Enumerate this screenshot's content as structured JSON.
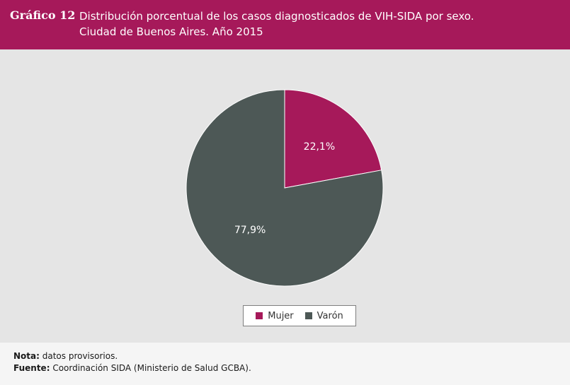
{
  "header": {
    "number": "Gráfico 12",
    "title_line1": "Distribución porcentual de los casos diagnosticados de VIH-SIDA por sexo.",
    "title_line2": "Ciudad de Buenos Aires. Año 2015"
  },
  "chart_data": {
    "type": "pie",
    "title": "Distribución porcentual de los casos diagnosticados de VIH-SIDA por sexo. Ciudad de Buenos Aires. Año 2015",
    "categories": [
      "Mujer",
      "Varón"
    ],
    "values": [
      22.1,
      77.9
    ],
    "labels": [
      "22,1%",
      "77,9%"
    ],
    "colors": [
      "#a6195a",
      "#4d5856"
    ],
    "legend": "bottom-center",
    "unit": "%"
  },
  "footer": {
    "nota_label": "Nota:",
    "nota_text": " datos provisorios.",
    "fuente_label": "Fuente:",
    "fuente_text": " Coordinación SIDA (Ministerio de Salud GCBA)."
  },
  "colors": {
    "header_bg": "#a6195a",
    "plot_bg": "#e5e5e5",
    "footer_bg": "#f5f5f5"
  }
}
